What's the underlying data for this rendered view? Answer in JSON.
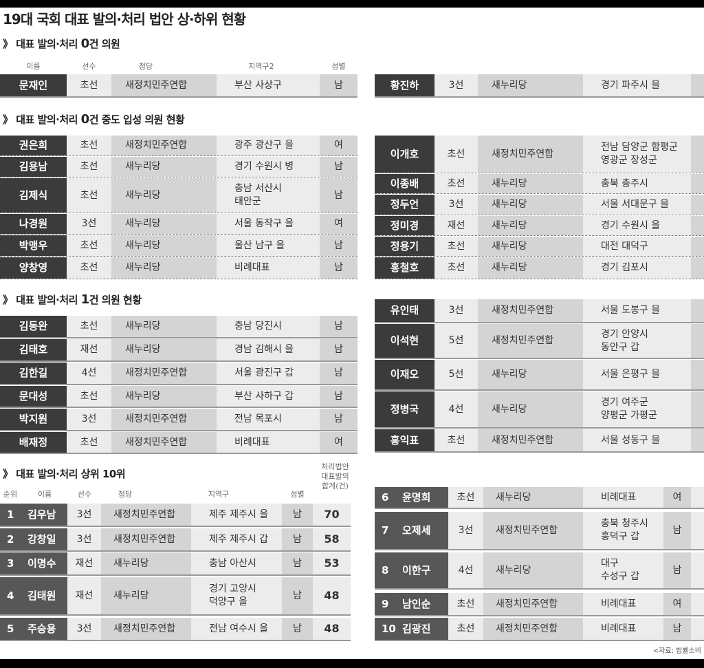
{
  "title": "19대 국회 대표 발의·처리 법안 상·하위 현황",
  "sections": [
    {
      "prefix": "》 대표 발의·처리 ",
      "big": "0",
      "suffix": "건 의원"
    },
    {
      "prefix": "》 대표 발의·처리 ",
      "big": "0",
      "suffix": "건 중도 입성 의원 현황"
    },
    {
      "prefix": "》 대표 발의·처리 ",
      "big": "1",
      "suffix": "건 의원 현황"
    },
    {
      "prefix": "》 대표 발의·처리  상위 10위",
      "big": "",
      "suffix": ""
    }
  ],
  "headers1": [
    "이름",
    "선수",
    "정당",
    "지역구2",
    "성별"
  ],
  "headers4": [
    "순위",
    "이름",
    "선수",
    "정당",
    "지역구",
    "성별",
    "처리법안\n대표발의\n합계(건)"
  ],
  "zero": [
    [
      "문재인",
      "초선",
      "새정치민주연합",
      "부산 사상구",
      "남"
    ],
    [
      "황진하",
      "3선",
      "새누리당",
      "경기 파주시 을",
      ""
    ]
  ],
  "midterm_left": [
    [
      "권은희",
      "초선",
      "새정치민주연합",
      "광주 광산구 을",
      "여"
    ],
    [
      "김용남",
      "초선",
      "새누리당",
      "경기 수원시 병",
      "남"
    ],
    [
      "김제식",
      "초선",
      "새누리당",
      "충남 서산시\n태안군",
      "남"
    ],
    [
      "나경원",
      "3선",
      "새누리당",
      "서울 동작구 을",
      "여"
    ],
    [
      "박맹우",
      "초선",
      "새누리당",
      "울산 남구 을",
      "남"
    ],
    [
      "양창영",
      "초선",
      "새누리당",
      "비례대표",
      "남"
    ]
  ],
  "midterm_right": [
    [
      "이개호",
      "초선",
      "새정치민주연합",
      "전남 담양군 함평군\n영광군 장성군",
      ""
    ],
    [
      "이종배",
      "초선",
      "새누리당",
      "충북 충주시",
      ""
    ],
    [
      "정두언",
      "3선",
      "새누리당",
      "서울 서대문구 을",
      ""
    ],
    [
      "정미경",
      "재선",
      "새누리당",
      "경기 수원시 을",
      ""
    ],
    [
      "정용기",
      "초선",
      "새누리당",
      "대전 대덕구",
      ""
    ],
    [
      "홍철호",
      "초선",
      "새누리당",
      "경기 김포시",
      ""
    ]
  ],
  "one_left": [
    [
      "김동완",
      "초선",
      "새누리당",
      "충남 당진시",
      "남"
    ],
    [
      "김태호",
      "재선",
      "새누리당",
      "경남 김해시 을",
      "남"
    ],
    [
      "김한길",
      "4선",
      "새정치민주연합",
      "서울 광진구 갑",
      "남"
    ],
    [
      "문대성",
      "초선",
      "새누리당",
      "부산 사하구 갑",
      "남"
    ],
    [
      "박지원",
      "3선",
      "새정치민주연합",
      "전남 목포시",
      "남"
    ],
    [
      "배재정",
      "초선",
      "새정치민주연합",
      "비례대표",
      "여"
    ]
  ],
  "one_right": [
    [
      "유인태",
      "3선",
      "새정치민주연합",
      "서울 도봉구 을",
      ""
    ],
    [
      "이석현",
      "5선",
      "새정치민주연합",
      "경기 안양시\n동안구 갑",
      ""
    ],
    [
      "이재오",
      "5선",
      "새누리당",
      "서울 은평구 을",
      ""
    ],
    [
      "정병국",
      "4선",
      "새누리당",
      "경기 여주군\n양평군 가평군",
      ""
    ],
    [
      "홍익표",
      "초선",
      "새정치민주연합",
      "서울 성동구 을",
      ""
    ]
  ],
  "top_left": [
    [
      "1",
      "김우남",
      "3선",
      "새정치민주연합",
      "제주 제주시 을",
      "남",
      "70"
    ],
    [
      "2",
      "강창일",
      "3선",
      "새정치민주연합",
      "제주 제주시 갑",
      "남",
      "58"
    ],
    [
      "3",
      "이명수",
      "재선",
      "새누리당",
      "충남 아산시",
      "남",
      "53"
    ],
    [
      "4",
      "김태원",
      "재선",
      "새누리당",
      "경기 고양시\n덕양구 을",
      "남",
      "48"
    ],
    [
      "5",
      "주승용",
      "3선",
      "새정치민주연합",
      "전남 여수시 을",
      "남",
      "48"
    ]
  ],
  "top_right": [
    [
      "6",
      "윤명희",
      "초선",
      "새누리당",
      "비례대표",
      "여",
      ""
    ],
    [
      "7",
      "오제세",
      "3선",
      "새정치민주연합",
      "충북 청주시\n흥덕구 갑",
      "남",
      ""
    ],
    [
      "8",
      "이한구",
      "4선",
      "새누리당",
      "대구\n수성구 갑",
      "남",
      ""
    ],
    [
      "9",
      "남인순",
      "초선",
      "새정치민주연합",
      "비례대표",
      "여",
      ""
    ],
    [
      "10",
      "김광진",
      "초선",
      "새정치민주연합",
      "비례대표",
      "남",
      ""
    ]
  ],
  "source": "<자료: 법률소비"
}
